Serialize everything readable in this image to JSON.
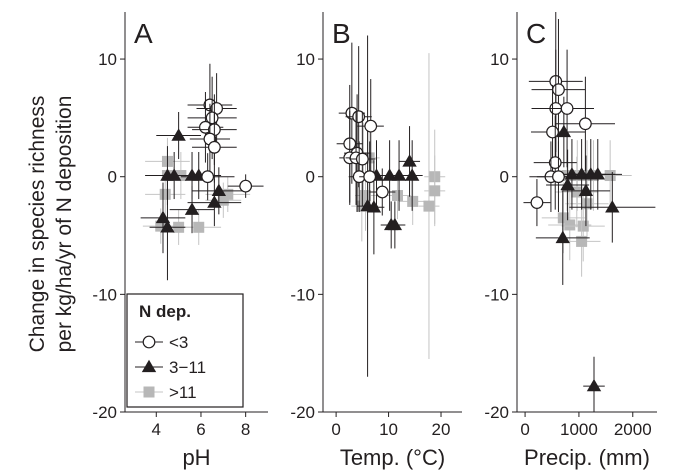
{
  "ylabel_line1": "Change in species richness",
  "ylabel_line2": "per kg/ha/yr of N deposition",
  "ylim": [
    -20,
    14
  ],
  "yticks": [
    10,
    0,
    -10,
    -20
  ],
  "legend": {
    "title": "N dep.",
    "placement": "bottom-left of panel A",
    "entries": [
      "<3",
      "3−11",
      ">11"
    ]
  },
  "series_style": [
    {
      "marker": "circle-open",
      "color": "#231f20"
    },
    {
      "marker": "triangle-filled",
      "color": "#231f20"
    },
    {
      "marker": "square-filled",
      "color": "#b7b7b7"
    }
  ],
  "chart_data": [
    {
      "type": "scatter",
      "panel_label": "A",
      "xlabel": "pH",
      "xlim": [
        2.6,
        9.0
      ],
      "xticks": [
        4,
        6,
        8
      ],
      "ylim": [
        -20,
        14
      ],
      "series": [
        {
          "points": [
            {
              "x": 6.4,
              "y": 6.1,
              "xerr": 1.0,
              "yerr": 3.5
            },
            {
              "x": 6.7,
              "y": 5.8,
              "xerr": 0.9,
              "yerr": 3.0
            },
            {
              "x": 6.5,
              "y": 5.0,
              "xerr": 1.1,
              "yerr": 3.5
            },
            {
              "x": 6.2,
              "y": 4.2,
              "xerr": 0.8,
              "yerr": 3.0
            },
            {
              "x": 6.6,
              "y": 4.0,
              "xerr": 1.0,
              "yerr": 3.0
            },
            {
              "x": 6.4,
              "y": 3.2,
              "xerr": 0.9,
              "yerr": 3.0
            },
            {
              "x": 6.6,
              "y": 2.5,
              "xerr": 1.0,
              "yerr": 3.0
            },
            {
              "x": 6.3,
              "y": 0.0,
              "xerr": 1.2,
              "yerr": 2.0
            },
            {
              "x": 8.0,
              "y": -0.8,
              "xerr": 0.8,
              "yerr": 1.0
            }
          ]
        },
        {
          "points": [
            {
              "x": 5.0,
              "y": 3.5,
              "xerr": 1.0,
              "yerr": 2.0
            },
            {
              "x": 4.5,
              "y": 0.1,
              "xerr": 1.0,
              "yerr": 2.5
            },
            {
              "x": 4.8,
              "y": 0.1,
              "xerr": 0.8,
              "yerr": 2.0
            },
            {
              "x": 5.6,
              "y": 0.1,
              "xerr": 1.0,
              "yerr": 2.0
            },
            {
              "x": 5.9,
              "y": 0.1,
              "xerr": 1.0,
              "yerr": 2.0
            },
            {
              "x": 6.8,
              "y": -1.2,
              "xerr": 1.2,
              "yerr": 2.0
            },
            {
              "x": 5.6,
              "y": -2.8,
              "xerr": 1.0,
              "yerr": 2.0
            },
            {
              "x": 6.6,
              "y": -2.2,
              "xerr": 1.2,
              "yerr": 2.0
            },
            {
              "x": 4.3,
              "y": -3.5,
              "xerr": 1.0,
              "yerr": 3.0
            },
            {
              "x": 4.5,
              "y": -4.3,
              "xerr": 0.8,
              "yerr": 4.5
            }
          ]
        },
        {
          "points": [
            {
              "x": 4.5,
              "y": 1.3,
              "xerr": 1.0,
              "yerr": 2.0
            },
            {
              "x": 4.5,
              "y": 0.1,
              "xerr": 1.0,
              "yerr": 2.0
            },
            {
              "x": 5.1,
              "y": 0.1,
              "xerr": 1.0,
              "yerr": 2.0
            },
            {
              "x": 4.4,
              "y": -1.5,
              "xerr": 0.9,
              "yerr": 2.0
            },
            {
              "x": 7.2,
              "y": -1.5,
              "xerr": 1.0,
              "yerr": 1.5
            },
            {
              "x": 7.0,
              "y": -2.0,
              "xerr": 0.8,
              "yerr": 1.5
            },
            {
              "x": 4.2,
              "y": -4.2,
              "xerr": 0.8,
              "yerr": 1.5
            },
            {
              "x": 5.0,
              "y": -4.3,
              "xerr": 0.8,
              "yerr": 1.5
            },
            {
              "x": 5.9,
              "y": -4.3,
              "xerr": 1.0,
              "yerr": 1.5
            }
          ]
        }
      ]
    },
    {
      "type": "scatter",
      "panel_label": "B",
      "xlabel": "Temp. (°C)",
      "xlim": [
        -2.5,
        24
      ],
      "xticks": [
        0,
        10,
        20
      ],
      "ylim": [
        -20,
        14
      ],
      "series": [
        {
          "points": [
            {
              "x": 3.0,
              "y": 5.4,
              "xerr": 2.5,
              "yerr": 6.0
            },
            {
              "x": 4.3,
              "y": 5.1,
              "xerr": 2.5,
              "yerr": 6.0
            },
            {
              "x": 6.6,
              "y": 4.3,
              "xerr": 2.5,
              "yerr": 4.0
            },
            {
              "x": 2.6,
              "y": 2.8,
              "xerr": 2.5,
              "yerr": 5.0
            },
            {
              "x": 4.0,
              "y": 2.0,
              "xerr": 2.5,
              "yerr": 5.0
            },
            {
              "x": 2.6,
              "y": 1.6,
              "xerr": 2.0,
              "yerr": 4.0
            },
            {
              "x": 3.8,
              "y": 1.6,
              "xerr": 2.0,
              "yerr": 4.0
            },
            {
              "x": 5.0,
              "y": 1.5,
              "xerr": 2.5,
              "yerr": 4.0
            },
            {
              "x": 4.4,
              "y": 0.0,
              "xerr": 2.0,
              "yerr": 3.0
            },
            {
              "x": 6.4,
              "y": 0.0,
              "xerr": 2.0,
              "yerr": 3.0
            },
            {
              "x": 8.8,
              "y": -1.3,
              "xerr": 2.5,
              "yerr": 2.0
            }
          ]
        },
        {
          "points": [
            {
              "x": 14.0,
              "y": 1.3,
              "xerr": 2.0,
              "yerr": 3.0
            },
            {
              "x": 7.7,
              "y": 0.1,
              "xerr": 2.0,
              "yerr": 3.0
            },
            {
              "x": 10.2,
              "y": 0.1,
              "xerr": 2.0,
              "yerr": 3.0
            },
            {
              "x": 12.0,
              "y": 0.1,
              "xerr": 2.5,
              "yerr": 3.0
            },
            {
              "x": 14.5,
              "y": 0.1,
              "xerr": 2.0,
              "yerr": 3.0
            },
            {
              "x": 6.0,
              "y": -2.5,
              "xerr": 2.0,
              "yerr": 14.5
            },
            {
              "x": 7.2,
              "y": -2.6,
              "xerr": 2.0,
              "yerr": 4.0
            },
            {
              "x": 10.5,
              "y": -4.1,
              "xerr": 2.0,
              "yerr": 2.0
            },
            {
              "x": 11.2,
              "y": -4.1,
              "xerr": 2.0,
              "yerr": 2.0
            }
          ]
        },
        {
          "points": [
            {
              "x": 5.2,
              "y": 1.6,
              "xerr": 2.0,
              "yerr": 3.0
            },
            {
              "x": 6.3,
              "y": 1.6,
              "xerr": 2.0,
              "yerr": 3.0
            },
            {
              "x": 18.8,
              "y": 0.0,
              "xerr": 2.0,
              "yerr": 4.0
            },
            {
              "x": 18.8,
              "y": -1.2,
              "xerr": 2.0,
              "yerr": 3.0
            },
            {
              "x": 11.7,
              "y": -1.6,
              "xerr": 2.5,
              "yerr": 2.0
            },
            {
              "x": 14.6,
              "y": -2.1,
              "xerr": 2.5,
              "yerr": 2.0
            },
            {
              "x": 17.7,
              "y": -2.5,
              "xerr": 2.0,
              "yerr": 13.0
            },
            {
              "x": 4.9,
              "y": -2.5,
              "xerr": 2.0,
              "yerr": 3.0
            },
            {
              "x": 5.6,
              "y": -1.6,
              "xerr": 2.0,
              "yerr": 3.0
            }
          ]
        }
      ]
    },
    {
      "type": "scatter",
      "panel_label": "C",
      "xlabel": "Precip. (mm)",
      "xlim": [
        -150,
        2450
      ],
      "xticks": [
        0,
        1000,
        2000
      ],
      "ylim": [
        -20,
        14
      ],
      "series": [
        {
          "points": [
            {
              "x": 570,
              "y": 8.1,
              "xerr": 500,
              "yerr": 6.0
            },
            {
              "x": 620,
              "y": 7.4,
              "xerr": 500,
              "yerr": 6.0
            },
            {
              "x": 570,
              "y": 5.8,
              "xerr": 450,
              "yerr": 5.0
            },
            {
              "x": 780,
              "y": 5.8,
              "xerr": 500,
              "yerr": 5.0
            },
            {
              "x": 1120,
              "y": 4.5,
              "xerr": 550,
              "yerr": 4.0
            },
            {
              "x": 510,
              "y": 3.8,
              "xerr": 400,
              "yerr": 4.0
            },
            {
              "x": 560,
              "y": 1.2,
              "xerr": 400,
              "yerr": 4.0
            },
            {
              "x": 480,
              "y": 0.0,
              "xerr": 400,
              "yerr": 3.0
            },
            {
              "x": 620,
              "y": 0.0,
              "xerr": 400,
              "yerr": 3.0
            },
            {
              "x": 220,
              "y": -2.2,
              "xerr": 250,
              "yerr": 2.0
            }
          ]
        },
        {
          "points": [
            {
              "x": 720,
              "y": 3.8,
              "xerr": 400,
              "yerr": 3.0
            },
            {
              "x": 870,
              "y": 0.2,
              "xerr": 450,
              "yerr": 3.0
            },
            {
              "x": 1050,
              "y": 0.2,
              "xerr": 450,
              "yerr": 3.0
            },
            {
              "x": 1220,
              "y": 0.2,
              "xerr": 450,
              "yerr": 3.0
            },
            {
              "x": 1350,
              "y": 0.2,
              "xerr": 450,
              "yerr": 3.0
            },
            {
              "x": 790,
              "y": -0.7,
              "xerr": 400,
              "yerr": 3.0
            },
            {
              "x": 1130,
              "y": -1.2,
              "xerr": 450,
              "yerr": 3.0
            },
            {
              "x": 1620,
              "y": -2.6,
              "xerr": 800,
              "yerr": 3.0
            },
            {
              "x": 700,
              "y": -5.2,
              "xerr": 500,
              "yerr": 4.0
            },
            {
              "x": 1280,
              "y": -17.8,
              "xerr": 200,
              "yerr": 2.5
            }
          ]
        },
        {
          "points": [
            {
              "x": 780,
              "y": 0.1,
              "xerr": 400,
              "yerr": 3.0
            },
            {
              "x": 970,
              "y": 0.1,
              "xerr": 400,
              "yerr": 3.0
            },
            {
              "x": 1150,
              "y": 0.1,
              "xerr": 400,
              "yerr": 3.0
            },
            {
              "x": 1270,
              "y": 0.1,
              "xerr": 400,
              "yerr": 3.0
            },
            {
              "x": 1580,
              "y": 0.1,
              "xerr": 400,
              "yerr": 3.0
            },
            {
              "x": 960,
              "y": -1.3,
              "xerr": 400,
              "yerr": 3.0
            },
            {
              "x": 1150,
              "y": -2.3,
              "xerr": 400,
              "yerr": 3.0
            },
            {
              "x": 710,
              "y": -3.5,
              "xerr": 400,
              "yerr": 3.0
            },
            {
              "x": 830,
              "y": -4.1,
              "xerr": 400,
              "yerr": 3.0
            },
            {
              "x": 1080,
              "y": -4.2,
              "xerr": 400,
              "yerr": 3.0
            },
            {
              "x": 1050,
              "y": -5.5,
              "xerr": 350,
              "yerr": 3.0
            }
          ]
        }
      ]
    }
  ]
}
